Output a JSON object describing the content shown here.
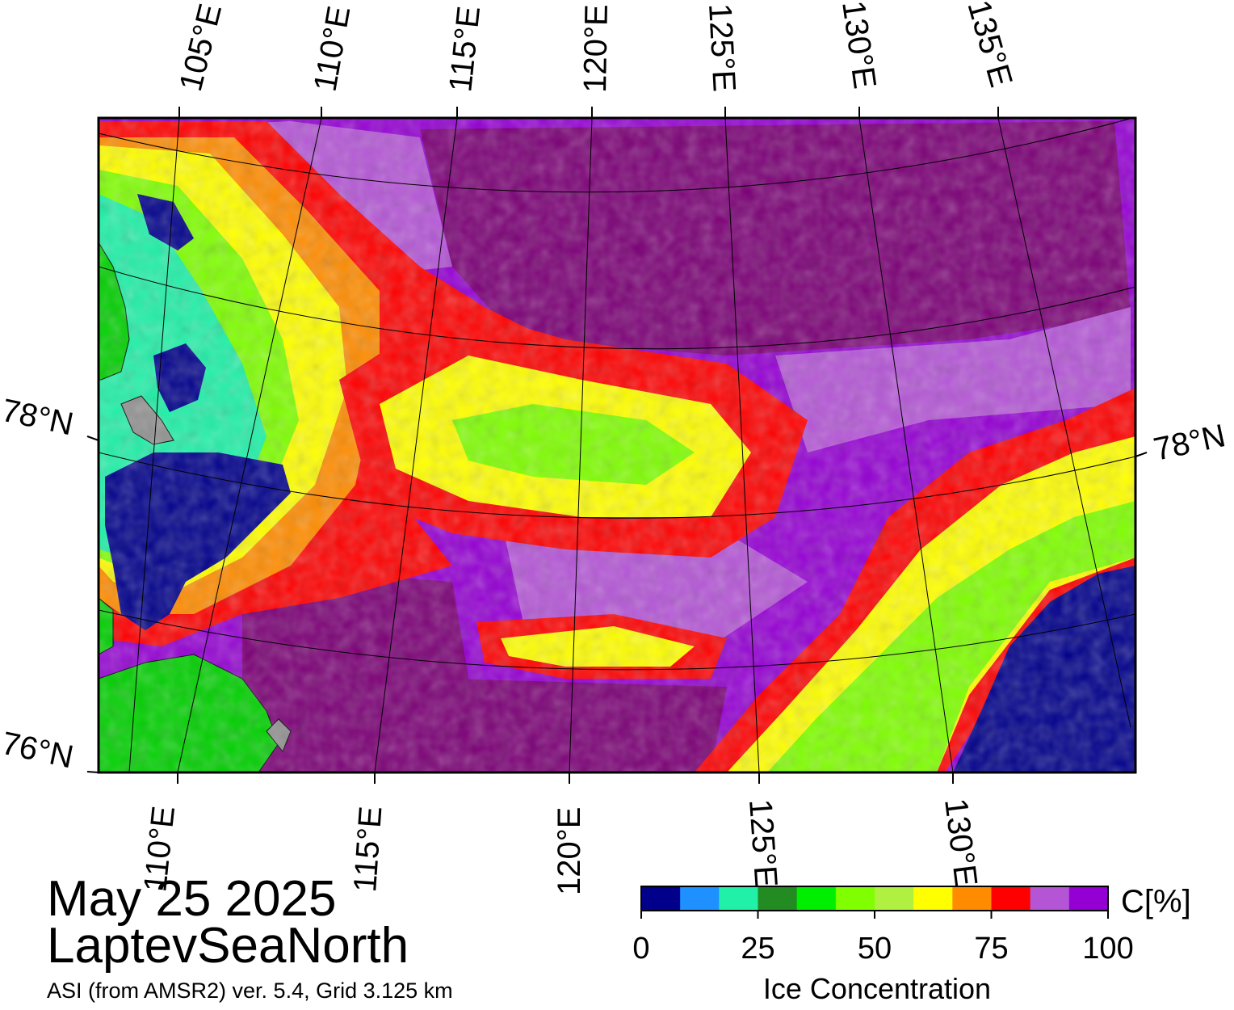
{
  "map": {
    "date": "May 25 2025",
    "region": "LaptevSeaNorth",
    "product": "ASI (from AMSR2) ver. 5.4,  Grid 3.125 km"
  },
  "graticule": {
    "top_lon_labels": [
      "105°E",
      "110°E",
      "115°E",
      "120°E",
      "125°E",
      "130°E",
      "135°E"
    ],
    "bottom_lon_labels": [
      "110°E",
      "115°E",
      "120°E",
      "125°E",
      "130°E"
    ],
    "left_lat_labels": [
      "78°N",
      "76°N"
    ],
    "right_lat_labels": [
      "78°N"
    ]
  },
  "colorbar": {
    "title": "Ice Concentration",
    "unit": "C[%]",
    "tick_labels": [
      "0",
      "25",
      "50",
      "75",
      "100"
    ],
    "range": [
      0,
      100
    ],
    "colors": [
      "#00008b",
      "#1e90ff",
      "#20f0a8",
      "#228b22",
      "#00ee00",
      "#7fff00",
      "#b0f040",
      "#ffff00",
      "#ff8c00",
      "#ff0000",
      "#b455d6",
      "#9400d3"
    ]
  },
  "legend_colors": {
    "land": "#00d000",
    "coast": "#909090",
    "open_water": "#00008b",
    "high_ice": "#7b0076"
  }
}
